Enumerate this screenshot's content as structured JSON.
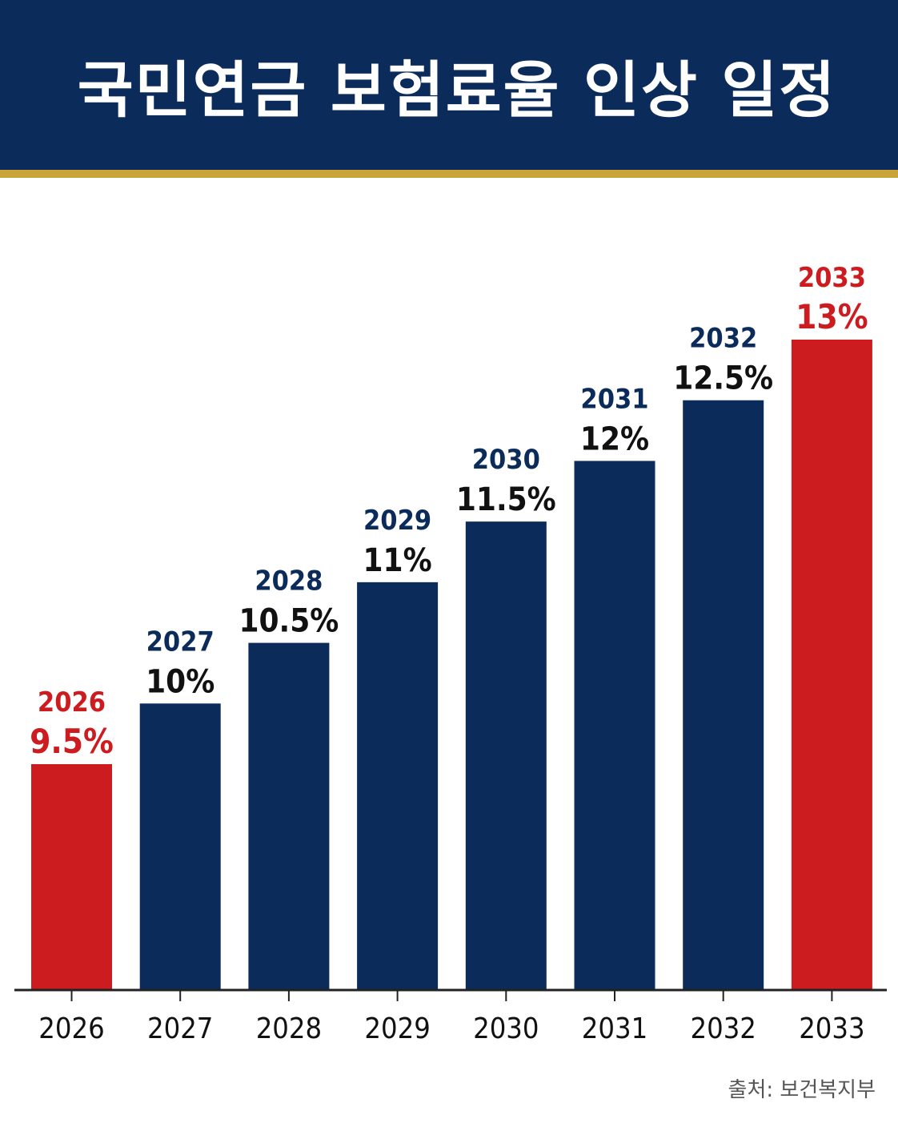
{
  "header": {
    "title": "국민연금 보험료율 인상 일정"
  },
  "source_text": "출처: 보건복지부",
  "colors": {
    "navy": "#0b2c5b",
    "red": "#cc1c1f",
    "gold": "#c9a43a",
    "label_dark": "#111111"
  },
  "chart_data": {
    "type": "bar",
    "title": "국민연금 보험료율 인상 일정",
    "categories": [
      "2026",
      "2027",
      "2028",
      "2029",
      "2030",
      "2031",
      "2032",
      "2033"
    ],
    "values": [
      9.5,
      10,
      10.5,
      11,
      11.5,
      12,
      12.5,
      13
    ],
    "value_labels": [
      "9.5%",
      "10%",
      "10.5%",
      "11%",
      "11.5%",
      "12%",
      "12.5%",
      "13%"
    ],
    "highlighted": [
      "2026",
      "2033"
    ],
    "unit": "%",
    "grid": false,
    "legend": "none"
  }
}
